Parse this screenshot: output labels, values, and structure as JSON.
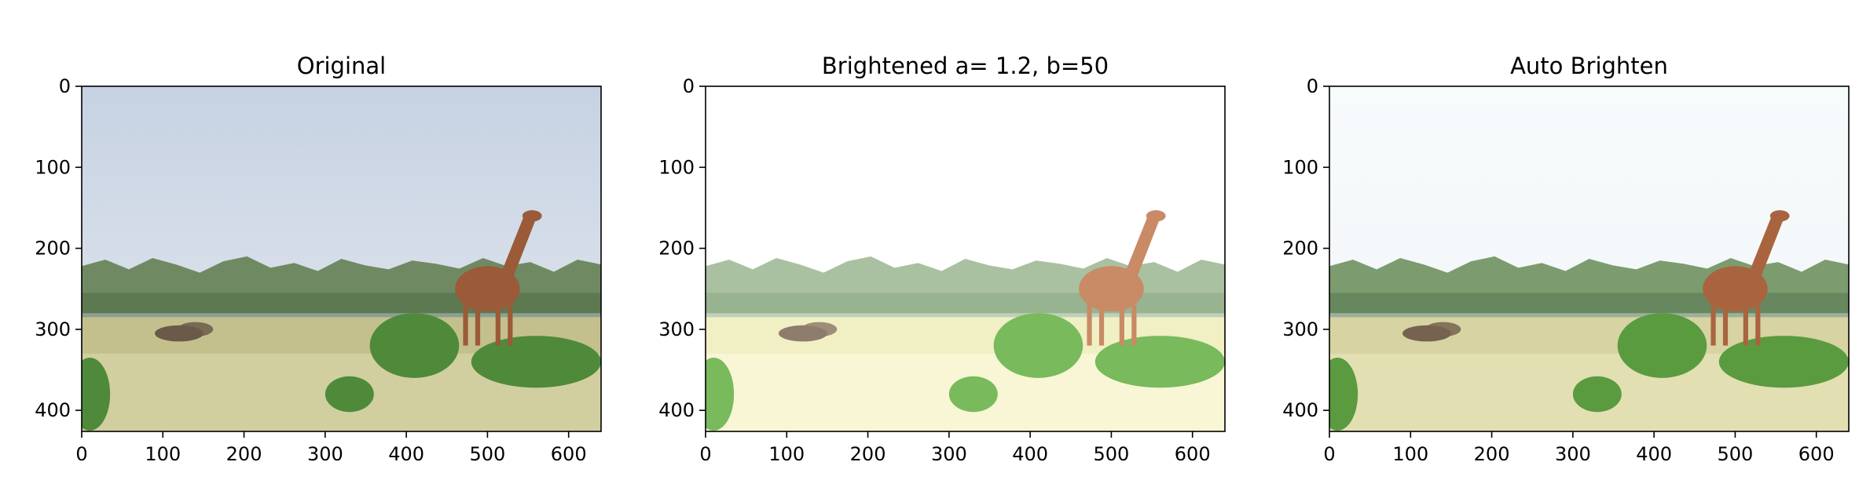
{
  "figure": {
    "background": "#ffffff"
  },
  "chart_data": [
    {
      "type": "image",
      "title": "Original",
      "xlim": [
        0,
        640
      ],
      "ylim": [
        426,
        0
      ],
      "xticks": [
        0,
        100,
        200,
        300,
        400,
        500,
        600
      ],
      "yticks": [
        0,
        100,
        200,
        300,
        400
      ],
      "xtick_labels": [
        "0",
        "100",
        "200",
        "300",
        "400",
        "500",
        "600"
      ],
      "ytick_labels": [
        "0",
        "100",
        "200",
        "300",
        "400"
      ],
      "palette": {
        "sky_top": "#c6d2e3",
        "sky_bottom": "#e4e8ee",
        "trees": "#6f8a62",
        "trees_dark": "#4d6b45",
        "grass": "#c4c08e",
        "grass_light": "#d7d5a6",
        "bush": "#4f8a3a",
        "giraffe": "#9b5a38",
        "zebra": "#6b5a4a"
      }
    },
    {
      "type": "image",
      "title": "Brightened a= 1.2, b=50",
      "xlim": [
        0,
        640
      ],
      "ylim": [
        426,
        0
      ],
      "xticks": [
        0,
        100,
        200,
        300,
        400,
        500,
        600
      ],
      "yticks": [
        0,
        100,
        200,
        300,
        400
      ],
      "xtick_labels": [
        "0",
        "100",
        "200",
        "300",
        "400",
        "500",
        "600"
      ],
      "ytick_labels": [
        "0",
        "100",
        "200",
        "300",
        "400"
      ],
      "palette": {
        "sky_top": "#ffffff",
        "sky_bottom": "#ffffff",
        "trees": "#a9c1a1",
        "trees_dark": "#8aa784",
        "grass": "#f1efc4",
        "grass_light": "#fbf9dc",
        "bush": "#79ba5c",
        "giraffe": "#c98a66",
        "zebra": "#8e7d6c"
      }
    },
    {
      "type": "image",
      "title": "Auto Brighten",
      "xlim": [
        0,
        640
      ],
      "ylim": [
        426,
        0
      ],
      "xticks": [
        0,
        100,
        200,
        300,
        400,
        500,
        600
      ],
      "yticks": [
        0,
        100,
        200,
        300,
        400
      ],
      "xtick_labels": [
        "0",
        "100",
        "200",
        "300",
        "400",
        "500",
        "600"
      ],
      "ytick_labels": [
        "0",
        "100",
        "200",
        "300",
        "400"
      ],
      "palette": {
        "sky_top": "#f6fbfc",
        "sky_bottom": "#f2f5f7",
        "trees": "#7c9c6f",
        "trees_dark": "#557650",
        "grass": "#d7d3a2",
        "grass_light": "#e7e4ba",
        "bush": "#5a9b40",
        "giraffe": "#a9643f",
        "zebra": "#75634f"
      }
    }
  ]
}
